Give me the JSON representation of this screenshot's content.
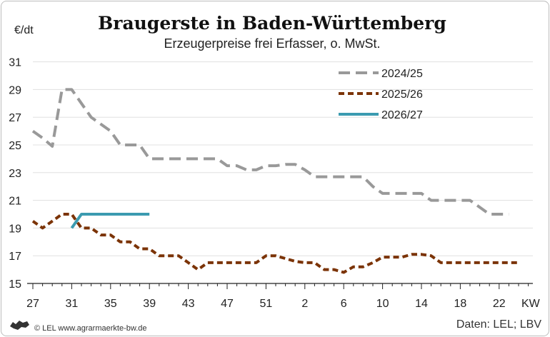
{
  "chart_data": {
    "type": "line",
    "title": "Braugerste in Baden-Württemberg",
    "subtitle": "Erzeugerpreise frei Erfasser, o. MwSt.",
    "ylabel": "€/dt",
    "xlabel": "KW",
    "ylim": [
      15,
      31
    ],
    "yticks": [
      15,
      17,
      19,
      21,
      23,
      25,
      27,
      29,
      31
    ],
    "xtick_labels": [
      "27",
      "31",
      "35",
      "39",
      "43",
      "47",
      "51",
      "2",
      "6",
      "10",
      "14",
      "18",
      "22"
    ],
    "x_unit": "calendar week index from KW 27 (0 = KW 27, 25 = KW 52, 26 = KW 1)",
    "grid": "horizontal",
    "legend_position": "top-right",
    "series": [
      {
        "name": "2024/25",
        "color": "#999999",
        "style": "dashed",
        "points": [
          [
            0,
            26.0
          ],
          [
            1,
            25.5
          ],
          [
            2,
            24.9
          ],
          [
            3,
            29.0
          ],
          [
            4,
            29.0
          ],
          [
            5,
            28.0
          ],
          [
            6,
            27.0
          ],
          [
            7,
            26.5
          ],
          [
            8,
            26.0
          ],
          [
            9,
            25.0
          ],
          [
            10,
            25.0
          ],
          [
            11,
            25.0
          ],
          [
            12,
            24.0
          ],
          [
            13,
            24.0
          ],
          [
            14,
            24.0
          ],
          [
            15,
            24.0
          ],
          [
            16,
            24.0
          ],
          [
            17,
            24.0
          ],
          [
            18,
            24.0
          ],
          [
            19,
            24.0
          ],
          [
            20,
            23.5
          ],
          [
            21,
            23.5
          ],
          [
            22,
            23.2
          ],
          [
            23,
            23.2
          ],
          [
            24,
            23.5
          ],
          [
            25,
            23.5
          ],
          [
            26,
            23.6
          ],
          [
            27,
            23.6
          ],
          [
            28,
            23.2
          ],
          [
            29,
            22.7
          ],
          [
            30,
            22.7
          ],
          [
            31,
            22.7
          ],
          [
            32,
            22.7
          ],
          [
            33,
            22.7
          ],
          [
            34,
            22.7
          ],
          [
            35,
            22.0
          ],
          [
            36,
            21.5
          ],
          [
            37,
            21.5
          ],
          [
            38,
            21.5
          ],
          [
            39,
            21.5
          ],
          [
            40,
            21.5
          ],
          [
            41,
            21.0
          ],
          [
            42,
            21.0
          ],
          [
            43,
            21.0
          ],
          [
            44,
            21.0
          ],
          [
            45,
            21.0
          ],
          [
            46,
            20.5
          ],
          [
            47,
            20.0
          ],
          [
            48,
            20.0
          ],
          [
            49,
            20.0
          ]
        ]
      },
      {
        "name": "2025/26",
        "color": "#7b3306",
        "style": "dotted",
        "points": [
          [
            0,
            19.5
          ],
          [
            1,
            19.0
          ],
          [
            2,
            19.5
          ],
          [
            3,
            20.0
          ],
          [
            4,
            20.0
          ],
          [
            5,
            19.0
          ],
          [
            6,
            19.0
          ],
          [
            7,
            18.5
          ],
          [
            8,
            18.5
          ],
          [
            9,
            18.0
          ],
          [
            10,
            18.0
          ],
          [
            11,
            17.5
          ],
          [
            12,
            17.5
          ],
          [
            13,
            17.0
          ],
          [
            14,
            17.0
          ],
          [
            15,
            17.0
          ],
          [
            16,
            16.5
          ],
          [
            17,
            16.0
          ],
          [
            18,
            16.5
          ],
          [
            19,
            16.5
          ],
          [
            20,
            16.5
          ],
          [
            21,
            16.5
          ],
          [
            22,
            16.5
          ],
          [
            23,
            16.5
          ],
          [
            24,
            17.0
          ],
          [
            25,
            17.0
          ],
          [
            26,
            16.8
          ],
          [
            27,
            16.6
          ],
          [
            28,
            16.5
          ],
          [
            29,
            16.5
          ],
          [
            30,
            16.0
          ],
          [
            31,
            16.0
          ],
          [
            32,
            15.8
          ],
          [
            33,
            16.2
          ],
          [
            34,
            16.2
          ],
          [
            35,
            16.5
          ],
          [
            36,
            16.9
          ],
          [
            37,
            16.9
          ],
          [
            38,
            16.9
          ],
          [
            39,
            17.1
          ],
          [
            40,
            17.1
          ],
          [
            41,
            17.0
          ],
          [
            42,
            16.5
          ],
          [
            43,
            16.5
          ],
          [
            44,
            16.5
          ],
          [
            45,
            16.5
          ],
          [
            46,
            16.5
          ],
          [
            47,
            16.5
          ],
          [
            48,
            16.5
          ],
          [
            49,
            16.5
          ],
          [
            50,
            16.5
          ]
        ]
      },
      {
        "name": "2026/27",
        "color": "#3b9bb0",
        "style": "solid",
        "points": [
          [
            4,
            19.0
          ],
          [
            5,
            20.0
          ],
          [
            6,
            20.0
          ],
          [
            7,
            20.0
          ],
          [
            8,
            20.0
          ],
          [
            9,
            20.0
          ],
          [
            10,
            20.0
          ],
          [
            11,
            20.0
          ],
          [
            12,
            20.0
          ]
        ]
      }
    ]
  },
  "footer": {
    "copyright": "© LEL www.agrarmaerkte-bw.de",
    "source": "Daten: LEL; LBV"
  }
}
